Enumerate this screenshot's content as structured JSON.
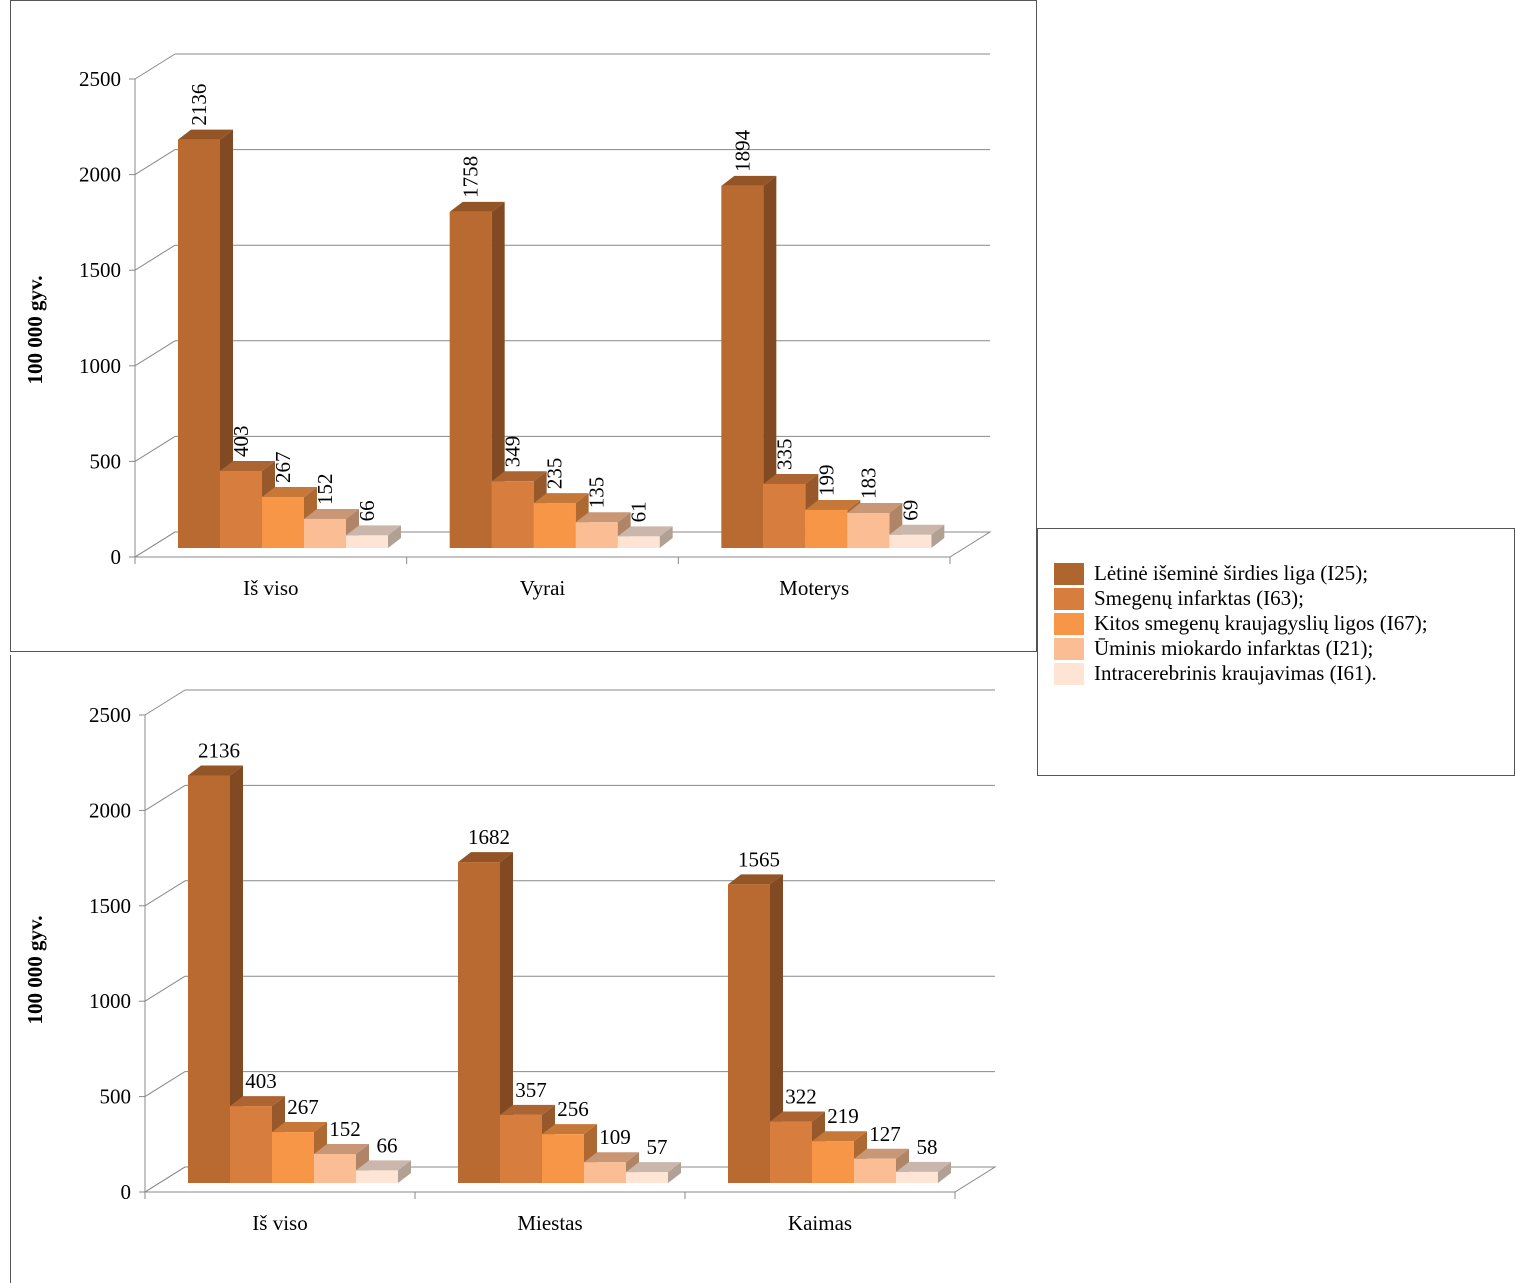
{
  "chart_data": [
    {
      "type": "bar",
      "ylabel": "100 000 gyv.",
      "ylim": [
        0,
        2500
      ],
      "yticks": [
        0,
        500,
        1000,
        1500,
        2000,
        2500
      ],
      "grid": true,
      "data_label_rotation": -90,
      "legend": "right",
      "categories": [
        "Iš viso",
        "Vyrai",
        "Moterys"
      ],
      "series": [
        {
          "name": "Lėtinė išeminė širdies liga (I25);",
          "color": "#b86a30",
          "values": [
            2136,
            1758,
            1894
          ]
        },
        {
          "name": "Smegenų infarktas (I63);",
          "color": "#d77d3e",
          "values": [
            403,
            349,
            335
          ]
        },
        {
          "name": "Kitos smegenų kraujagyslių ligos (I67);",
          "color": "#f79646",
          "values": [
            267,
            235,
            199
          ]
        },
        {
          "name": "Ūminis miokardo infarktas (I21);",
          "color": "#fbbd93",
          "values": [
            152,
            135,
            183
          ]
        },
        {
          "name": "Intracerebrinis kraujavimas (I61).",
          "color": "#fde4d4",
          "values": [
            66,
            61,
            69
          ]
        }
      ]
    },
    {
      "type": "bar",
      "ylabel": "100 000 gyv.",
      "ylim": [
        0,
        2500
      ],
      "yticks": [
        0,
        500,
        1000,
        1500,
        2000,
        2500
      ],
      "grid": true,
      "data_label_rotation": 0,
      "categories": [
        "Iš viso",
        "Miestas",
        "Kaimas"
      ],
      "series": [
        {
          "color": "#b86a30",
          "values": [
            2136,
            1682,
            1565
          ]
        },
        {
          "color": "#d77d3e",
          "values": [
            403,
            357,
            322
          ]
        },
        {
          "color": "#f79646",
          "values": [
            267,
            256,
            219
          ]
        },
        {
          "color": "#fbbd93",
          "values": [
            152,
            109,
            127
          ]
        },
        {
          "color": "#fde4d4",
          "values": [
            66,
            57,
            58
          ]
        }
      ]
    }
  ]
}
